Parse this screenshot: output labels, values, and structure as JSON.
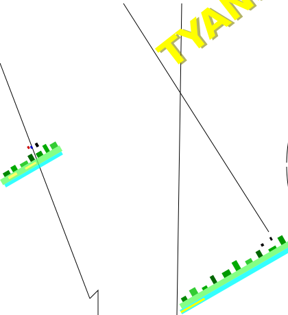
{
  "figure": {
    "stroke_color": "#000000",
    "background_color": "#ffffff"
  },
  "watermark": {
    "text": "TYANS",
    "fill_color": "#ffff00",
    "shadow_color": "#808000"
  },
  "stamp_strips": {
    "colors": [
      "#66ff66",
      "#00ffff",
      "#008800",
      "#ffff00",
      "#000000"
    ]
  }
}
